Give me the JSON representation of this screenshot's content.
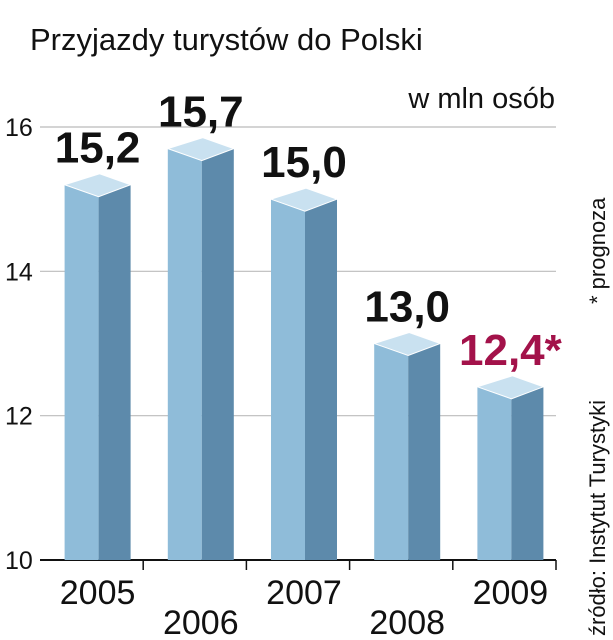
{
  "chart_data": {
    "type": "bar",
    "title": "Przyjazdy turystów do Polski",
    "unit_label": "w mln osób",
    "categories": [
      "2005",
      "2006",
      "2007",
      "2008",
      "2009"
    ],
    "values": [
      15.2,
      15.7,
      15.0,
      13.0,
      12.4
    ],
    "data_labels": [
      "15,2",
      "15,7",
      "15,0",
      "13,0",
      "12,4*"
    ],
    "highlight_index": 4,
    "ylim": [
      10,
      16
    ],
    "yticks": [
      10,
      12,
      14,
      16
    ],
    "grid": true,
    "source": "źródło: Instytut Turystyki",
    "footnote": "* prognoza",
    "colors": {
      "bar_front": "#8fbcd9",
      "bar_side": "#5d8aab",
      "bar_top": "#c9e1f0",
      "highlight_label": "#a3124a",
      "label": "#111111",
      "grid": "#bbbbbb"
    }
  }
}
